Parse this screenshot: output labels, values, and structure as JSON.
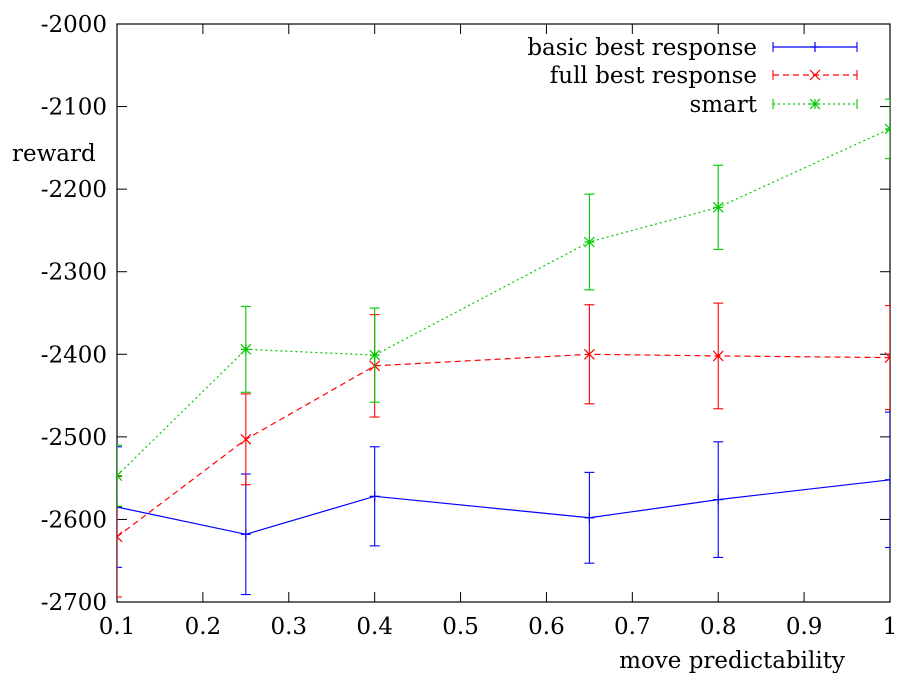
{
  "chart_data": {
    "type": "line",
    "xlabel": "move predictability",
    "ylabel": "reward",
    "xlim": [
      0.1,
      1
    ],
    "ylim": [
      -2700,
      -2000
    ],
    "xticks": [
      "0.1",
      "0.2",
      "0.3",
      "0.4",
      "0.5",
      "0.6",
      "0.7",
      "0.8",
      "0.9",
      "1"
    ],
    "yticks": [
      "-2000",
      "-2100",
      "-2200",
      "-2300",
      "-2400",
      "-2500",
      "-2600",
      "-2700"
    ],
    "legend_position": "top-right",
    "grid": false,
    "series": [
      {
        "name": "basic best response",
        "color": "#0000ff",
        "dash": "solid",
        "marker": "plus",
        "x": [
          0.1,
          0.25,
          0.4,
          0.65,
          0.8,
          1.0
        ],
        "y": [
          -2585,
          -2618,
          -2572,
          -2598,
          -2576,
          -2552
        ],
        "err": [
          73,
          73,
          60,
          55,
          70,
          82
        ]
      },
      {
        "name": "full best response",
        "color": "#ff0000",
        "dash": "dashed",
        "marker": "x",
        "x": [
          0.1,
          0.25,
          0.4,
          0.65,
          0.8,
          1.0
        ],
        "y": [
          -2621,
          -2503,
          -2414,
          -2400,
          -2402,
          -2404
        ],
        "err": [
          73,
          55,
          62,
          60,
          64,
          63
        ]
      },
      {
        "name": "smart",
        "color": "#00c800",
        "dash": "dotted",
        "marker": "star",
        "x": [
          0.1,
          0.25,
          0.4,
          0.65,
          0.8,
          1.0
        ],
        "y": [
          -2547,
          -2394,
          -2401,
          -2264,
          -2222,
          -2127
        ],
        "err": [
          37,
          52,
          57,
          58,
          51,
          36
        ]
      }
    ]
  }
}
